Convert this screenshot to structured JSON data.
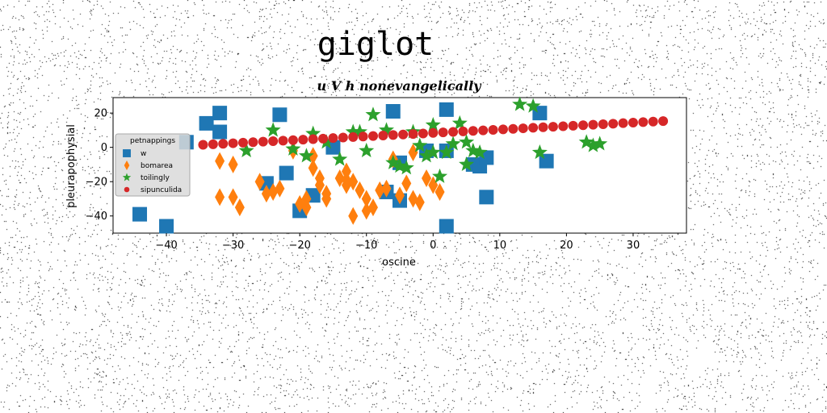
{
  "figure_title": "giglot",
  "chart_data": {
    "type": "scatter",
    "title": "u V h nonevangelically",
    "xlabel": "oscine",
    "ylabel": "pleurapophysial",
    "xlim": [
      -48,
      38
    ],
    "ylim": [
      -50,
      29
    ],
    "xticks": [
      -40,
      -30,
      -20,
      -10,
      0,
      10,
      20,
      30
    ],
    "yticks": [
      -40,
      -20,
      0,
      20
    ],
    "grid": false,
    "legend": {
      "title": "petnappings",
      "placement": "center-left"
    },
    "series": [
      {
        "name": "w",
        "marker": "square",
        "color": "#1f77b4",
        "points": [
          [
            -44,
            -39
          ],
          [
            -40,
            -46
          ],
          [
            -37,
            3
          ],
          [
            -34,
            14
          ],
          [
            -32,
            20
          ],
          [
            -32,
            9
          ],
          [
            -25,
            -21
          ],
          [
            -23,
            19
          ],
          [
            -22,
            -15
          ],
          [
            -20,
            -37
          ],
          [
            -18,
            -28
          ],
          [
            -15,
            0
          ],
          [
            -7,
            -26
          ],
          [
            -6,
            21
          ],
          [
            -5,
            -31
          ],
          [
            -5,
            -9
          ],
          [
            -1,
            -2
          ],
          [
            2,
            22
          ],
          [
            2,
            -46
          ],
          [
            2,
            -2
          ],
          [
            6,
            -10
          ],
          [
            7,
            -11
          ],
          [
            8,
            -6
          ],
          [
            8,
            -29
          ],
          [
            16,
            20
          ],
          [
            17,
            -8
          ]
        ]
      },
      {
        "name": "bomarea",
        "marker": "thin_diamond",
        "color": "#ff7f0e",
        "points": [
          [
            -32,
            -8
          ],
          [
            -30,
            -10
          ],
          [
            -32,
            -29
          ],
          [
            -30,
            -29
          ],
          [
            -29,
            -35
          ],
          [
            -26,
            -20
          ],
          [
            -25,
            -27
          ],
          [
            -24,
            -26
          ],
          [
            -23,
            -24
          ],
          [
            -21,
            -2
          ],
          [
            -20,
            -33
          ],
          [
            -19,
            -35
          ],
          [
            -19,
            -30
          ],
          [
            -18,
            -5
          ],
          [
            -18,
            -12
          ],
          [
            -17,
            -18
          ],
          [
            -17,
            -22
          ],
          [
            -16,
            -27
          ],
          [
            -16,
            -30
          ],
          [
            -14,
            -18
          ],
          [
            -13,
            -14
          ],
          [
            -13,
            -19
          ],
          [
            -13,
            -22
          ],
          [
            -12,
            -20
          ],
          [
            -11,
            -25
          ],
          [
            -10,
            -30
          ],
          [
            -10,
            -37
          ],
          [
            -9,
            -35
          ],
          [
            -8,
            -25
          ],
          [
            -7,
            -24
          ],
          [
            -6,
            -7
          ],
          [
            -5,
            -28
          ],
          [
            -4,
            -21
          ],
          [
            -3,
            -30
          ],
          [
            -2,
            -32
          ],
          [
            -1,
            -18
          ],
          [
            0,
            -22
          ],
          [
            1,
            -26
          ],
          [
            -3,
            -3
          ],
          [
            -12,
            -40
          ]
        ]
      },
      {
        "name": "toilingly",
        "marker": "star",
        "color": "#2ca02c",
        "points": [
          [
            -28,
            -2
          ],
          [
            -24,
            10
          ],
          [
            -21,
            -1
          ],
          [
            -19,
            -5
          ],
          [
            -18,
            8
          ],
          [
            -16,
            3
          ],
          [
            -14,
            -7
          ],
          [
            -12,
            9
          ],
          [
            -11,
            9
          ],
          [
            -9,
            19
          ],
          [
            -7,
            10
          ],
          [
            -6,
            -9
          ],
          [
            -5,
            -11
          ],
          [
            -4,
            -12
          ],
          [
            -2,
            1
          ],
          [
            -1,
            -5
          ],
          [
            0,
            -3
          ],
          [
            0,
            13
          ],
          [
            1,
            -17
          ],
          [
            2,
            -3
          ],
          [
            3,
            2
          ],
          [
            4,
            14
          ],
          [
            5,
            3
          ],
          [
            5,
            -10
          ],
          [
            6,
            -2
          ],
          [
            7,
            -3
          ],
          [
            13,
            25
          ],
          [
            15,
            24
          ],
          [
            16,
            -3
          ],
          [
            23,
            3
          ],
          [
            24,
            1
          ],
          [
            25,
            2
          ],
          [
            -10,
            -2
          ],
          [
            -3,
            9
          ]
        ]
      },
      {
        "name": "sipunculida",
        "marker": "circle",
        "color": "#d62728",
        "points": [
          [
            -34.5,
            1.5
          ],
          [
            -33,
            1.8
          ],
          [
            -31.5,
            2.1
          ],
          [
            -30,
            2.4
          ],
          [
            -28.5,
            2.7
          ],
          [
            -27,
            3.0
          ],
          [
            -25.5,
            3.3
          ],
          [
            -24,
            3.6
          ],
          [
            -22.5,
            3.9
          ],
          [
            -21,
            4.2
          ],
          [
            -19.5,
            4.5
          ],
          [
            -18,
            4.8
          ],
          [
            -16.5,
            5.1
          ],
          [
            -15,
            5.4
          ],
          [
            -13.5,
            5.7
          ],
          [
            -12,
            6.0
          ],
          [
            -10.5,
            6.3
          ],
          [
            -9,
            6.6
          ],
          [
            -7.5,
            6.9
          ],
          [
            -6,
            7.2
          ],
          [
            -4.5,
            7.5
          ],
          [
            -3,
            7.8
          ],
          [
            -1.5,
            8.1
          ],
          [
            0,
            8.4
          ],
          [
            1.5,
            8.7
          ],
          [
            3,
            9.0
          ],
          [
            4.5,
            9.3
          ],
          [
            6,
            9.6
          ],
          [
            7.5,
            9.9
          ],
          [
            9,
            10.2
          ],
          [
            10.5,
            10.5
          ],
          [
            12,
            10.8
          ],
          [
            13.5,
            11.1
          ],
          [
            15,
            11.4
          ],
          [
            16.5,
            11.7
          ],
          [
            18,
            12.0
          ],
          [
            19.5,
            12.3
          ],
          [
            21,
            12.6
          ],
          [
            22.5,
            12.9
          ],
          [
            24,
            13.2
          ],
          [
            25.5,
            13.5
          ],
          [
            27,
            13.8
          ],
          [
            28.5,
            14.1
          ],
          [
            30,
            14.4
          ],
          [
            31.5,
            14.7
          ],
          [
            33,
            15.0
          ],
          [
            34.5,
            15.3
          ]
        ]
      }
    ]
  }
}
